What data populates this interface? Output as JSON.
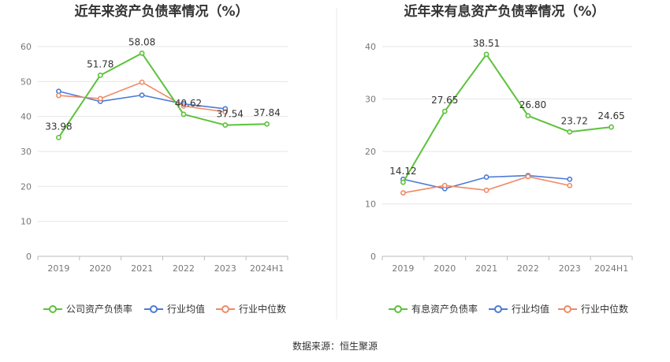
{
  "source_label": "数据来源：恒生聚源",
  "chart_data": [
    {
      "type": "line",
      "title": "近年来资产负债率情况（%）",
      "categories": [
        "2019",
        "2020",
        "2021",
        "2022",
        "2023",
        "2024H1"
      ],
      "ylim": [
        0,
        60
      ],
      "yticks": [
        "0",
        "10",
        "20",
        "30",
        "40",
        "50",
        "60"
      ],
      "grid": true,
      "legend_position": "bottom",
      "series": [
        {
          "name": "公司资产负债率",
          "color": "#5cc23a",
          "values": [
            33.98,
            51.78,
            58.08,
            40.62,
            37.54,
            37.84
          ],
          "labels": [
            "33.98",
            "51.78",
            "58.08",
            "40.62",
            "37.54",
            "37.84"
          ]
        },
        {
          "name": "行业均值",
          "color": "#4c7bd6",
          "values": [
            47.2,
            44.3,
            46.1,
            43.6,
            42.2,
            null
          ]
        },
        {
          "name": "行业中位数",
          "color": "#f08a66",
          "values": [
            46.0,
            45.1,
            49.8,
            43.0,
            41.3,
            null
          ]
        }
      ]
    },
    {
      "type": "line",
      "title": "近年来有息资产负债率情况（%）",
      "categories": [
        "2019",
        "2020",
        "2021",
        "2022",
        "2023",
        "2024H1"
      ],
      "ylim": [
        0,
        40
      ],
      "yticks": [
        "0",
        "10",
        "20",
        "30",
        "40"
      ],
      "grid": true,
      "legend_position": "bottom",
      "series": [
        {
          "name": "有息资产负债率",
          "color": "#5cc23a",
          "values": [
            14.12,
            27.65,
            38.51,
            26.8,
            23.72,
            24.65
          ],
          "labels": [
            "14.12",
            "27.65",
            "38.51",
            "26.80",
            "23.72",
            "24.65"
          ]
        },
        {
          "name": "行业均值",
          "color": "#4c7bd6",
          "values": [
            14.7,
            12.9,
            15.1,
            15.4,
            14.7,
            null
          ]
        },
        {
          "name": "行业中位数",
          "color": "#f08a66",
          "values": [
            12.1,
            13.5,
            12.6,
            15.2,
            13.5,
            null
          ]
        }
      ]
    }
  ]
}
